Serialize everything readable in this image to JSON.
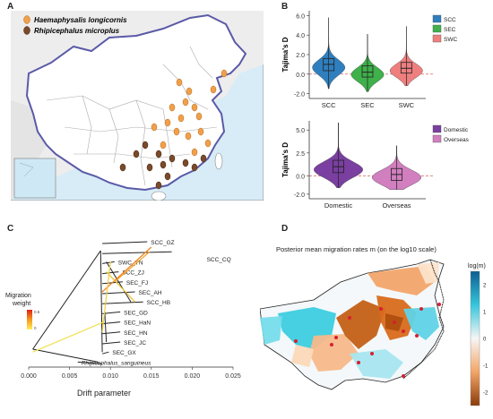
{
  "panels": {
    "a": "A",
    "b": "B",
    "c": "C",
    "d": "D"
  },
  "panel_a": {
    "legend": [
      "Haemaphysalis longicornis",
      "Rhipicephalus microplus"
    ]
  },
  "chart_data": [
    {
      "type": "violin",
      "panel": "B-top",
      "ylabel": "Tajima's D",
      "categories": [
        "SCC",
        "SEC",
        "SWC"
      ],
      "legend": [
        "SCC",
        "SEC",
        "SWC"
      ],
      "legend_position": "right",
      "yticks": [
        "-2.0",
        "0.0",
        "2.0",
        "4.0",
        "6.0"
      ],
      "ylim": [
        -2.5,
        6.5
      ],
      "series": [
        {
          "name": "SCC",
          "color": "#2f7fbf",
          "q1": 0.35,
          "median": 1.0,
          "q3": 1.6,
          "min": -1.5,
          "max": 5.8
        },
        {
          "name": "SEC",
          "color": "#3fb04a",
          "q1": -0.3,
          "median": 0.2,
          "q3": 0.85,
          "min": -1.8,
          "max": 4.1
        },
        {
          "name": "SWC",
          "color": "#ef7f7f",
          "q1": 0.1,
          "median": 0.6,
          "q3": 1.2,
          "min": -1.2,
          "max": 4.9
        }
      ]
    },
    {
      "type": "violin",
      "panel": "B-bottom",
      "ylabel": "Tajima's D",
      "categories": [
        "Domestic",
        "Overseas"
      ],
      "legend": [
        "Domestic",
        "Overseas"
      ],
      "legend_position": "right",
      "yticks": [
        "-2.0",
        "0.0",
        "2.5",
        "5.0"
      ],
      "ylim": [
        -2.5,
        6.0
      ],
      "series": [
        {
          "name": "Domestic",
          "color": "#7a3fa0",
          "q1": 0.35,
          "median": 1.0,
          "q3": 1.7,
          "min": -1.3,
          "max": 5.8
        },
        {
          "name": "Overseas",
          "color": "#d17fbf",
          "q1": -0.5,
          "median": 0.15,
          "q3": 0.8,
          "min": -1.5,
          "max": 3.3
        }
      ]
    },
    {
      "type": "tree",
      "panel": "C",
      "xlabel": "Drift parameter",
      "xticks": [
        "0.000",
        "0.005",
        "0.010",
        "0.015",
        "0.020",
        "0.025"
      ],
      "xlim": [
        0.0,
        0.025
      ],
      "legend_title": [
        "Migration",
        "weight"
      ],
      "legend_ticks": [
        "0",
        "0.5"
      ],
      "taxa": [
        {
          "label": "SCC_GZ",
          "drift": 0.0145
        },
        {
          "label": "SCC_CQ",
          "drift": 0.0175
        },
        {
          "label": "SWC_YN",
          "drift": 0.0105
        },
        {
          "label": "SCC_ZJ",
          "drift": 0.011
        },
        {
          "label": "SEC_FJ",
          "drift": 0.0115
        },
        {
          "label": "SEC_AH",
          "drift": 0.013
        },
        {
          "label": "SCC_HB",
          "drift": 0.014
        },
        {
          "label": "SEC_GD",
          "drift": 0.0112
        },
        {
          "label": "SEC_HaN",
          "drift": 0.0112
        },
        {
          "label": "SEC_HN",
          "drift": 0.0112
        },
        {
          "label": "SEC_JC",
          "drift": 0.0112
        },
        {
          "label": "SEC_GX",
          "drift": 0.0098
        },
        {
          "label": "Rhipicephalus_sanguineus",
          "drift": 0.006
        }
      ]
    },
    {
      "type": "heatmap",
      "panel": "D",
      "title": "Posterior mean migration rates m (on the log10 scale)",
      "colorbar_title": "log(m)",
      "colorbar_ticks": [
        "2",
        "1",
        "0",
        "-1",
        "-2"
      ],
      "colorbar_range": [
        -2.5,
        2.5
      ]
    }
  ]
}
